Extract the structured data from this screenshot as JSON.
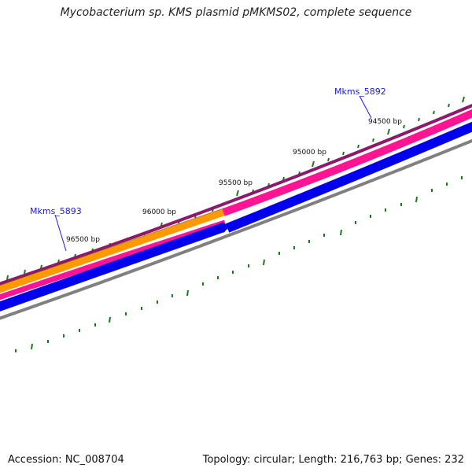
{
  "title": "Mycobacterium sp. KMS plasmid pMKMS02, complete sequence",
  "footer": {
    "accession": "Accession: NC_008704",
    "summary": "Topology: circular; Length: 216,763 bp; Genes: 232"
  },
  "position_labels": [
    "94500 bp",
    "95000 bp",
    "95500 bp",
    "96000 bp",
    "96500 bp"
  ],
  "gene_labels": [
    "Mkms_5892",
    "Mkms_5893"
  ],
  "colors": {
    "backbone": "#8b1a6b",
    "orange_track": "#ff9900",
    "pink_track": "#ff1493",
    "blue_track": "#0000ee",
    "gray_track": "#808080",
    "ticks": "#1a7a1a",
    "gene_label": "#1a1adb"
  }
}
